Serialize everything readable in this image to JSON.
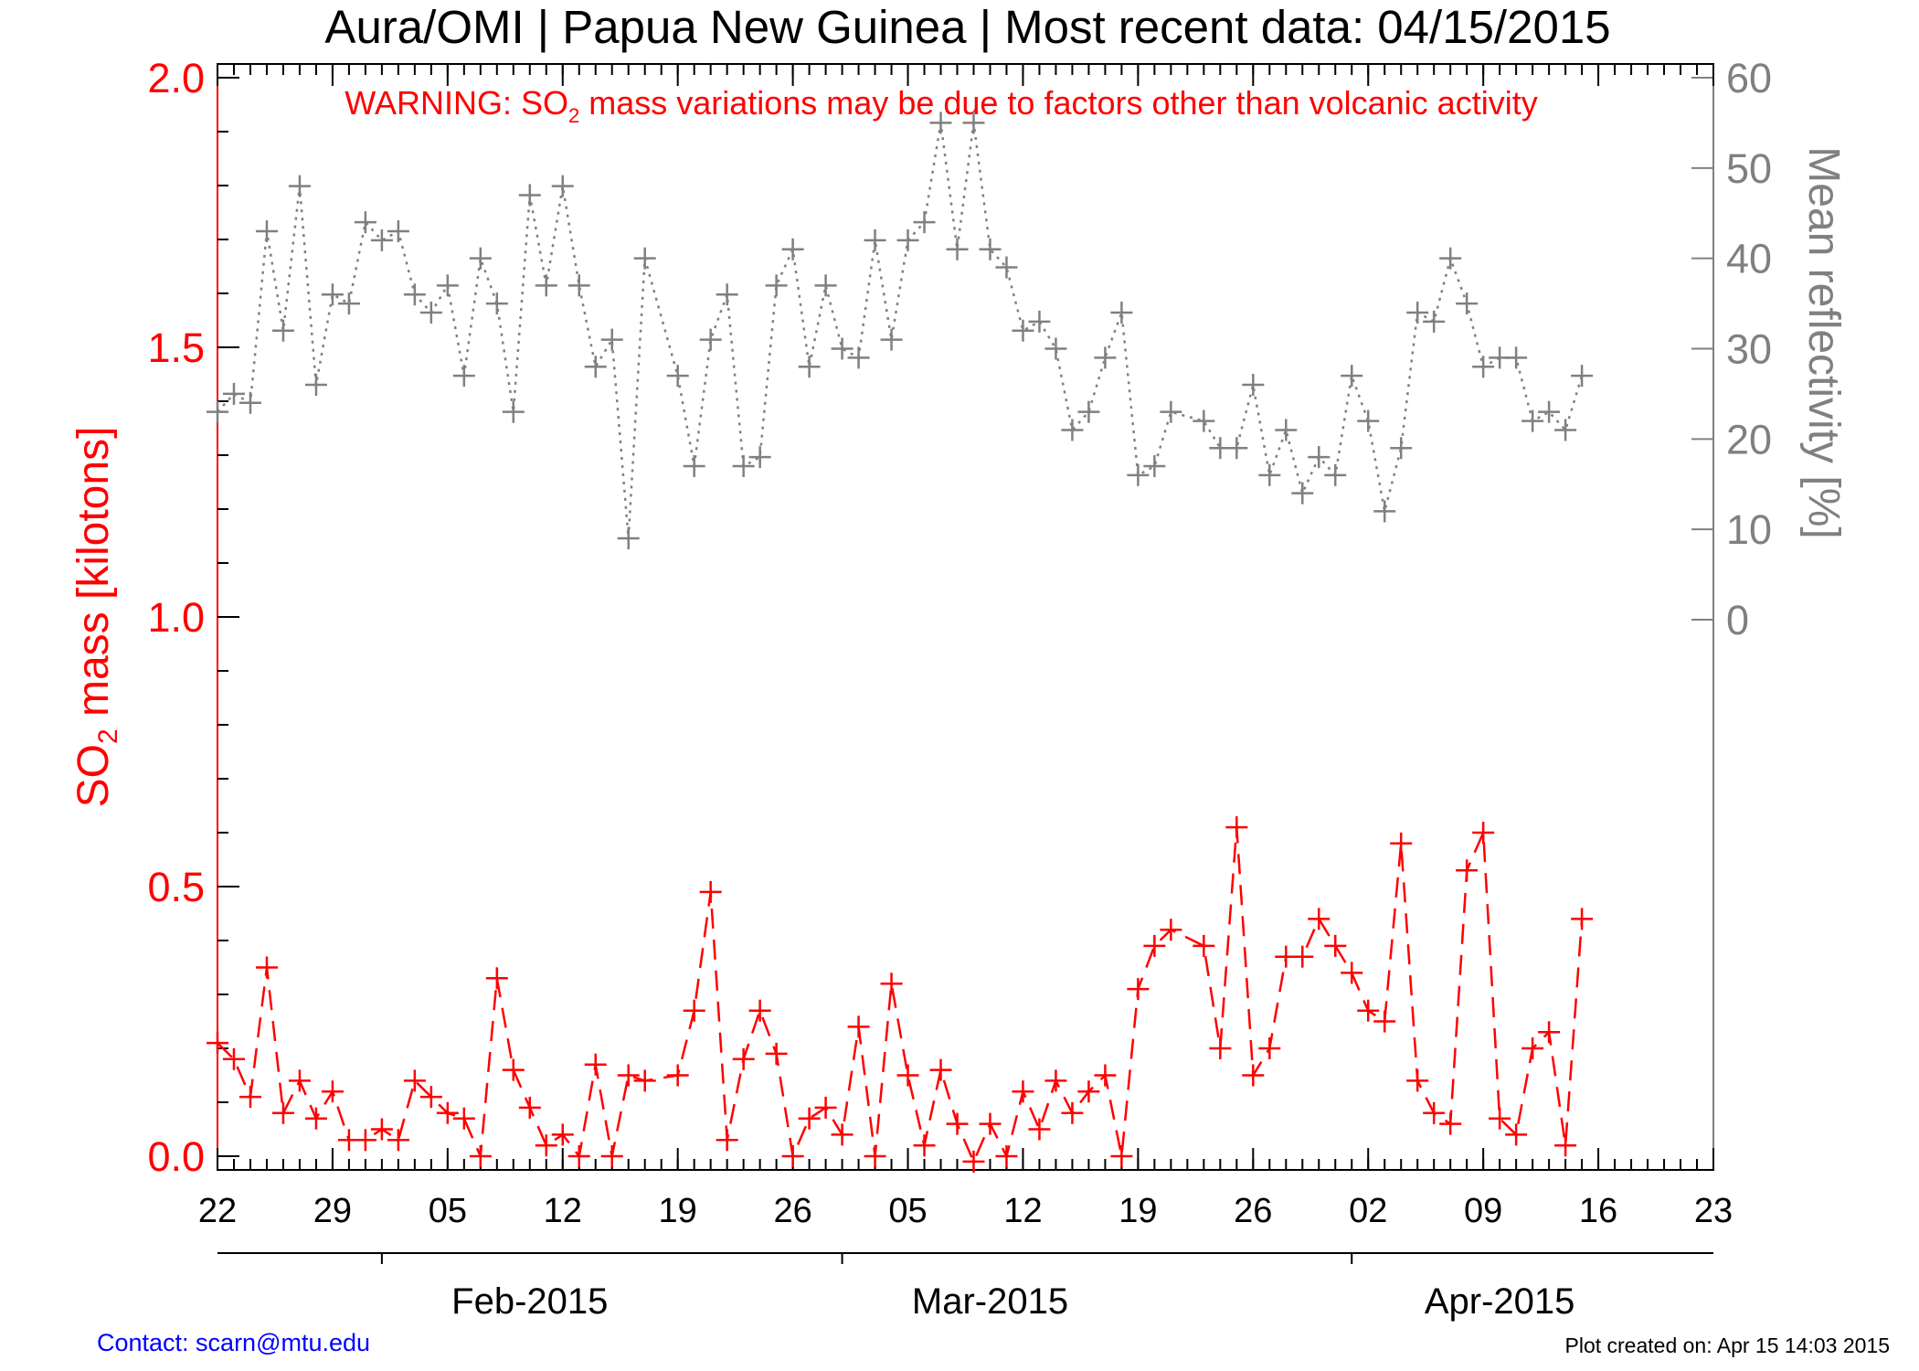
{
  "colors": {
    "so2": "#ff0000",
    "reflectivity": "#808080",
    "axis": "#000000",
    "contact": "#0000ff"
  },
  "footer": {
    "contact": "Contact: scarn@mtu.edu",
    "created": "Plot created on: Apr 15 14:03 2015"
  },
  "chart_data": {
    "type": "line",
    "title": "Aura/OMI | Papua New Guinea | Most recent data: 04/15/2015",
    "warning": {
      "prefix": "WARNING: SO",
      "subscript": "2",
      "suffix": " mass variations may be due to factors other than volcanic activity"
    },
    "ylabel_left": {
      "prefix": "SO",
      "subscript": "2",
      "suffix": " mass [kilotons]"
    },
    "ylabel_right": "Mean reflectivity [%]",
    "x_start": "2015-01-22",
    "x_end": "2015-04-23",
    "x_day_ticks": [
      "22",
      "29",
      "05",
      "12",
      "19",
      "26",
      "05",
      "12",
      "19",
      "26",
      "02",
      "09",
      "16",
      "23"
    ],
    "x_day_tick_dates": [
      "2015-01-22",
      "2015-01-29",
      "2015-02-05",
      "2015-02-12",
      "2015-02-19",
      "2015-02-26",
      "2015-03-05",
      "2015-03-12",
      "2015-03-19",
      "2015-03-26",
      "2015-04-02",
      "2015-04-09",
      "2015-04-16",
      "2015-04-23"
    ],
    "month_labels": [
      "Feb-2015",
      "Mar-2015",
      "Apr-2015"
    ],
    "month_label_dates": [
      "2015-02-10",
      "2015-03-10",
      "2015-04-10"
    ],
    "month_tick_dates": [
      "2015-02-01",
      "2015-03-01",
      "2015-04-01"
    ],
    "ylim_left": [
      -0.03,
      2.02
    ],
    "yticks_left": [
      "0.0",
      "0.5",
      "1.0",
      "1.5",
      "2.0"
    ],
    "yticks_left_values": [
      0.0,
      0.5,
      1.0,
      1.5,
      2.0
    ],
    "ylim_right": [
      0,
      60
    ],
    "yticks_right": [
      "0",
      "10",
      "20",
      "30",
      "40",
      "50",
      "60"
    ],
    "yticks_right_values": [
      0,
      10,
      20,
      30,
      40,
      50,
      60
    ],
    "series": [
      {
        "name": "SO2 mass",
        "axis": "left",
        "style": "dashed",
        "points": [
          [
            "2015-01-22",
            0.21
          ],
          [
            "2015-01-23",
            0.18
          ],
          [
            "2015-01-24",
            0.11
          ],
          [
            "2015-01-25",
            0.35
          ],
          [
            "2015-01-26",
            0.08
          ],
          [
            "2015-01-27",
            0.14
          ],
          [
            "2015-01-28",
            0.07
          ],
          [
            "2015-01-29",
            0.12
          ],
          [
            "2015-01-30",
            0.03
          ],
          [
            "2015-01-31",
            0.03
          ],
          [
            "2015-02-01",
            0.05
          ],
          [
            "2015-02-02",
            0.03
          ],
          [
            "2015-02-03",
            0.14
          ],
          [
            "2015-02-04",
            0.11
          ],
          [
            "2015-02-05",
            0.08
          ],
          [
            "2015-02-06",
            0.07
          ],
          [
            "2015-02-07",
            0.0
          ],
          [
            "2015-02-08",
            0.33
          ],
          [
            "2015-02-09",
            0.16
          ],
          [
            "2015-02-10",
            0.09
          ],
          [
            "2015-02-11",
            0.02
          ],
          [
            "2015-02-12",
            0.04
          ],
          [
            "2015-02-13",
            0.0
          ],
          [
            "2015-02-14",
            0.17
          ],
          [
            "2015-02-15",
            0.0
          ],
          [
            "2015-02-16",
            0.15
          ],
          [
            "2015-02-17",
            0.14
          ],
          [
            "2015-02-19",
            0.15
          ],
          [
            "2015-02-20",
            0.27
          ],
          [
            "2015-02-21",
            0.49
          ],
          [
            "2015-02-22",
            0.03
          ],
          [
            "2015-02-23",
            0.18
          ],
          [
            "2015-02-24",
            0.27
          ],
          [
            "2015-02-25",
            0.19
          ],
          [
            "2015-02-26",
            0.0
          ],
          [
            "2015-02-27",
            0.07
          ],
          [
            "2015-02-28",
            0.09
          ],
          [
            "2015-03-01",
            0.04
          ],
          [
            "2015-03-02",
            0.24
          ],
          [
            "2015-03-03",
            0.0
          ],
          [
            "2015-03-04",
            0.32
          ],
          [
            "2015-03-05",
            0.15
          ],
          [
            "2015-03-06",
            0.02
          ],
          [
            "2015-03-07",
            0.16
          ],
          [
            "2015-03-08",
            0.06
          ],
          [
            "2015-03-09",
            -0.01
          ],
          [
            "2015-03-10",
            0.06
          ],
          [
            "2015-03-11",
            0.0
          ],
          [
            "2015-03-12",
            0.12
          ],
          [
            "2015-03-13",
            0.05
          ],
          [
            "2015-03-14",
            0.14
          ],
          [
            "2015-03-15",
            0.08
          ],
          [
            "2015-03-16",
            0.12
          ],
          [
            "2015-03-17",
            0.15
          ],
          [
            "2015-03-18",
            0.0
          ],
          [
            "2015-03-19",
            0.31
          ],
          [
            "2015-03-20",
            0.39
          ],
          [
            "2015-03-21",
            0.42
          ],
          [
            "2015-03-23",
            0.39
          ],
          [
            "2015-03-24",
            0.2
          ],
          [
            "2015-03-25",
            0.61
          ],
          [
            "2015-03-26",
            0.15
          ],
          [
            "2015-03-27",
            0.2
          ],
          [
            "2015-03-28",
            0.37
          ],
          [
            "2015-03-29",
            0.37
          ],
          [
            "2015-03-30",
            0.44
          ],
          [
            "2015-03-31",
            0.39
          ],
          [
            "2015-04-01",
            0.34
          ],
          [
            "2015-04-02",
            0.27
          ],
          [
            "2015-04-03",
            0.25
          ],
          [
            "2015-04-04",
            0.58
          ],
          [
            "2015-04-05",
            0.14
          ],
          [
            "2015-04-06",
            0.08
          ],
          [
            "2015-04-07",
            0.06
          ],
          [
            "2015-04-08",
            0.53
          ],
          [
            "2015-04-09",
            0.6
          ],
          [
            "2015-04-10",
            0.07
          ],
          [
            "2015-04-11",
            0.04
          ],
          [
            "2015-04-12",
            0.2
          ],
          [
            "2015-04-13",
            0.23
          ],
          [
            "2015-04-14",
            0.02
          ],
          [
            "2015-04-15",
            0.44
          ]
        ]
      },
      {
        "name": "Mean reflectivity",
        "axis": "right",
        "style": "dotted",
        "points": [
          [
            "2015-01-22",
            23.0
          ],
          [
            "2015-01-23",
            25.0
          ],
          [
            "2015-01-24",
            24.0
          ],
          [
            "2015-01-25",
            43.0
          ],
          [
            "2015-01-26",
            32.0
          ],
          [
            "2015-01-27",
            48.0
          ],
          [
            "2015-01-28",
            26.0
          ],
          [
            "2015-01-29",
            36.0
          ],
          [
            "2015-01-30",
            35.0
          ],
          [
            "2015-01-31",
            44.0
          ],
          [
            "2015-02-01",
            42.0
          ],
          [
            "2015-02-02",
            43.0
          ],
          [
            "2015-02-03",
            36.0
          ],
          [
            "2015-02-04",
            34.0
          ],
          [
            "2015-02-05",
            37.0
          ],
          [
            "2015-02-06",
            27.0
          ],
          [
            "2015-02-07",
            40.0
          ],
          [
            "2015-02-08",
            35.0
          ],
          [
            "2015-02-09",
            23.0
          ],
          [
            "2015-02-10",
            47.0
          ],
          [
            "2015-02-11",
            37.0
          ],
          [
            "2015-02-12",
            48.0
          ],
          [
            "2015-02-13",
            37.0
          ],
          [
            "2015-02-14",
            28.0
          ],
          [
            "2015-02-15",
            31.0
          ],
          [
            "2015-02-16",
            9.0
          ],
          [
            "2015-02-17",
            40.0
          ],
          [
            "2015-02-19",
            27.0
          ],
          [
            "2015-02-20",
            17.0
          ],
          [
            "2015-02-21",
            31.0
          ],
          [
            "2015-02-22",
            36.0
          ],
          [
            "2015-02-23",
            17.0
          ],
          [
            "2015-02-24",
            18.0
          ],
          [
            "2015-02-25",
            37.0
          ],
          [
            "2015-02-26",
            41.0
          ],
          [
            "2015-02-27",
            28.0
          ],
          [
            "2015-02-28",
            37.0
          ],
          [
            "2015-03-01",
            30.0
          ],
          [
            "2015-03-02",
            29.0
          ],
          [
            "2015-03-03",
            42.0
          ],
          [
            "2015-03-04",
            31.0
          ],
          [
            "2015-03-05",
            42.0
          ],
          [
            "2015-03-06",
            44.0
          ],
          [
            "2015-03-07",
            55.0
          ],
          [
            "2015-03-08",
            41.0
          ],
          [
            "2015-03-09",
            55.0
          ],
          [
            "2015-03-10",
            41.0
          ],
          [
            "2015-03-11",
            39.0
          ],
          [
            "2015-03-12",
            32.0
          ],
          [
            "2015-03-13",
            33.0
          ],
          [
            "2015-03-14",
            30.0
          ],
          [
            "2015-03-15",
            21.0
          ],
          [
            "2015-03-16",
            23.0
          ],
          [
            "2015-03-17",
            29.0
          ],
          [
            "2015-03-18",
            34.0
          ],
          [
            "2015-03-19",
            16.0
          ],
          [
            "2015-03-20",
            17.0
          ],
          [
            "2015-03-21",
            23.0
          ],
          [
            "2015-03-23",
            22.0
          ],
          [
            "2015-03-24",
            19.0
          ],
          [
            "2015-03-25",
            19.0
          ],
          [
            "2015-03-26",
            26.0
          ],
          [
            "2015-03-27",
            16.0
          ],
          [
            "2015-03-28",
            21.0
          ],
          [
            "2015-03-29",
            14.0
          ],
          [
            "2015-03-30",
            18.0
          ],
          [
            "2015-03-31",
            16.0
          ],
          [
            "2015-04-01",
            27.0
          ],
          [
            "2015-04-02",
            22.0
          ],
          [
            "2015-04-03",
            12.0
          ],
          [
            "2015-04-04",
            19.0
          ],
          [
            "2015-04-05",
            34.0
          ],
          [
            "2015-04-06",
            33.0
          ],
          [
            "2015-04-07",
            40.0
          ],
          [
            "2015-04-08",
            35.0
          ],
          [
            "2015-04-09",
            28.0
          ],
          [
            "2015-04-10",
            29.0
          ],
          [
            "2015-04-11",
            29.0
          ],
          [
            "2015-04-12",
            22.0
          ],
          [
            "2015-04-13",
            23.0
          ],
          [
            "2015-04-14",
            21.0
          ],
          [
            "2015-04-15",
            27.0
          ]
        ]
      }
    ]
  }
}
